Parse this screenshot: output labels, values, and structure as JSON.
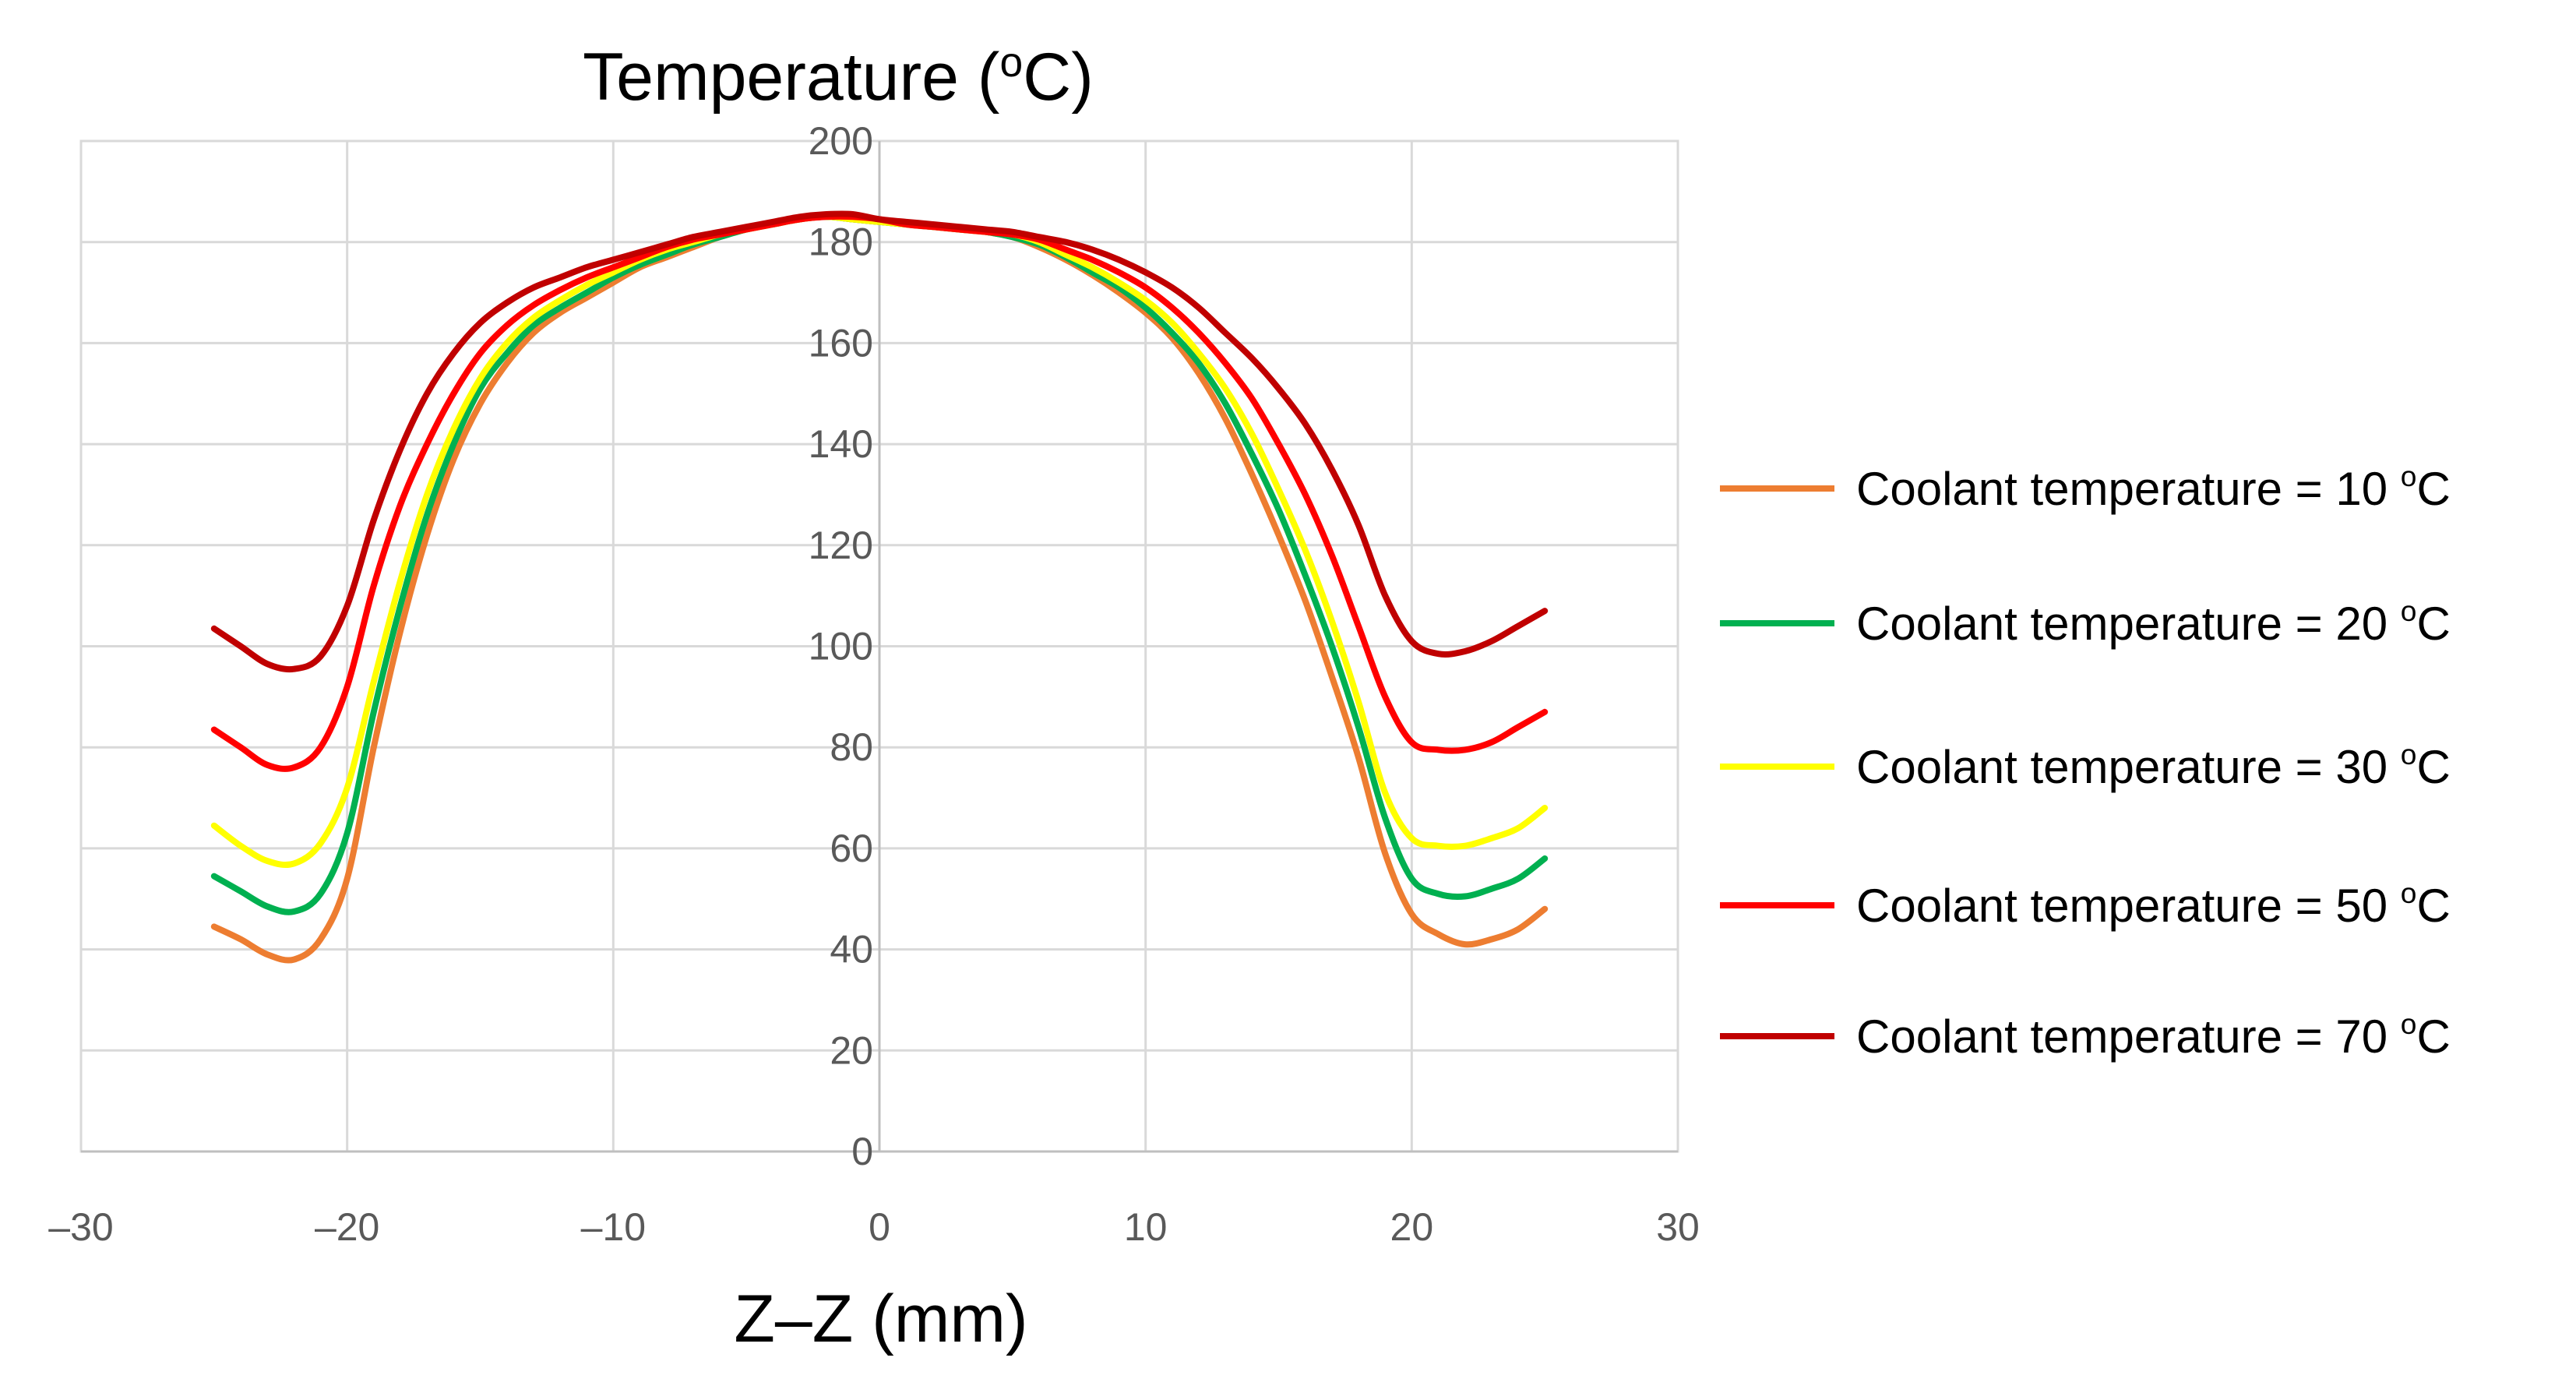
{
  "chart_data": {
    "type": "line",
    "title": "",
    "ylabel": {
      "main": "Temperature (",
      "sup": "o",
      "tail": "C)"
    },
    "xlabel": "Z–Z (mm)",
    "xlim": [
      -30,
      30
    ],
    "ylim": [
      0,
      200
    ],
    "x_ticks": [
      -30,
      -20,
      -10,
      0,
      10,
      20,
      30
    ],
    "x_tick_labels": [
      "–30",
      "–20",
      "–10",
      "0",
      "10",
      "20",
      "30"
    ],
    "y_ticks": [
      0,
      20,
      40,
      60,
      80,
      100,
      120,
      140,
      160,
      180,
      200
    ],
    "y_tick_labels": [
      "0",
      "20",
      "40",
      "60",
      "80",
      "100",
      "120",
      "140",
      "160",
      "180",
      "200"
    ],
    "grid": true,
    "legend_position": "right",
    "x": [
      -25,
      -24,
      -23,
      -22,
      -21,
      -20,
      -19,
      -18,
      -17,
      -16,
      -15,
      -14,
      -13,
      -12,
      -11,
      -10,
      -9,
      -8,
      -7,
      -6,
      -5,
      -4,
      -3,
      -2,
      -1,
      0,
      1,
      2,
      3,
      4,
      5,
      6,
      7,
      8,
      9,
      10,
      11,
      12,
      13,
      14,
      15,
      16,
      17,
      18,
      19,
      20,
      21,
      22,
      23,
      24,
      25
    ],
    "series": [
      {
        "name": "Coolant temperature = 10 ",
        "sup": "o",
        "unit": "C",
        "color": "#ED7D31",
        "values": [
          44.5,
          42,
          39,
          38,
          42,
          54,
          80,
          103,
          122,
          137,
          148,
          156,
          162,
          166,
          169,
          172,
          175,
          177,
          179,
          181,
          182.5,
          183.5,
          184.5,
          185,
          184.5,
          184,
          183.5,
          183,
          182.5,
          182,
          181,
          179,
          176.5,
          173.5,
          170,
          166,
          161,
          154,
          145,
          134,
          122,
          109,
          94,
          78,
          59,
          47,
          43,
          41,
          42,
          44,
          48
        ]
      },
      {
        "name": "Coolant temperature = 20 ",
        "sup": "o",
        "unit": "C",
        "color": "#00B050",
        "values": [
          54.5,
          51.5,
          48.5,
          47.5,
          51,
          63,
          87,
          108,
          126,
          140,
          151,
          158,
          163.5,
          167,
          170,
          173,
          175.5,
          177.5,
          179.5,
          181,
          182.5,
          183.5,
          184.5,
          185,
          184.5,
          184,
          183.5,
          183,
          182.5,
          182,
          181,
          179.5,
          177,
          174,
          171,
          167,
          162,
          156,
          148,
          138,
          127,
          114,
          100,
          84,
          66,
          54,
          51,
          50.5,
          52,
          54,
          58
        ]
      },
      {
        "name": "Coolant temperature = 30 ",
        "sup": "o",
        "unit": "C",
        "color": "#FFFF00",
        "values": [
          64.5,
          60.5,
          57.5,
          57,
          61,
          72,
          93,
          113,
          130,
          143,
          153,
          160,
          165,
          168.5,
          171.5,
          174,
          176.5,
          178.5,
          180,
          181.5,
          182.5,
          183.5,
          184.5,
          185,
          184.5,
          184,
          183.5,
          183,
          182.5,
          182,
          181.5,
          180,
          177.5,
          175,
          172,
          168.5,
          164,
          158,
          151,
          142,
          131,
          119,
          105,
          89,
          71,
          62,
          60.5,
          60.5,
          62,
          64,
          68
        ]
      },
      {
        "name": "Coolant temperature = 50 ",
        "sup": "o",
        "unit": "C",
        "color": "#FF0000",
        "values": [
          83.5,
          80,
          76.5,
          76,
          80,
          92,
          112,
          128,
          140,
          150,
          158,
          163.5,
          167.5,
          170.5,
          173,
          175,
          177,
          179,
          180.5,
          181.5,
          182.5,
          183.5,
          184.5,
          185,
          185,
          184.5,
          183.5,
          183,
          182.5,
          182,
          181.5,
          180.5,
          178.5,
          176.5,
          174,
          171,
          167,
          162,
          156,
          149,
          140,
          130,
          118,
          104,
          90,
          81,
          79.5,
          79.5,
          81,
          84,
          87
        ]
      },
      {
        "name": "Coolant temperature = 70 ",
        "sup": "o",
        "unit": "C",
        "color": "#C00000",
        "values": [
          103.5,
          100,
          96.5,
          95.5,
          98,
          108,
          125,
          139,
          150,
          158,
          164,
          168,
          171,
          173,
          175,
          176.5,
          178,
          179.5,
          181,
          182,
          183,
          184,
          185,
          185.5,
          185.5,
          184.5,
          184,
          183.5,
          183,
          182.5,
          182,
          181,
          180,
          178.5,
          176.5,
          174,
          171,
          167,
          162,
          157,
          151,
          144,
          135,
          124,
          110,
          101,
          98.5,
          99,
          101,
          104,
          107
        ]
      }
    ]
  }
}
